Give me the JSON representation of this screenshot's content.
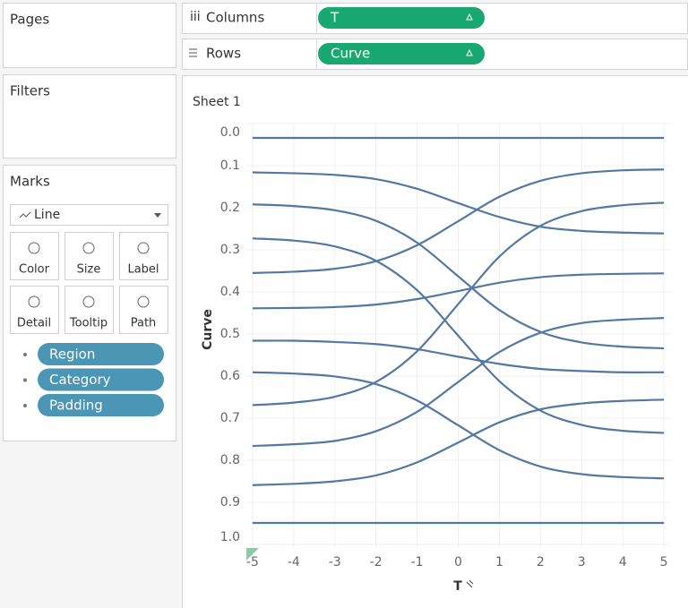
{
  "shelves": {
    "pages": "Pages",
    "filters": "Filters",
    "marks": {
      "title": "Marks",
      "mark_type": "Line",
      "buttons": [
        "Color",
        "Size",
        "Label",
        "Detail",
        "Tooltip",
        "Path"
      ],
      "pills": [
        "Region",
        "Category",
        "Padding"
      ]
    },
    "columns": {
      "label": "Columns",
      "pill": "T"
    },
    "rows": {
      "label": "Rows",
      "pill": "Curve"
    }
  },
  "chart_data": {
    "type": "line",
    "title": "Sheet 1",
    "x_label": "T",
    "y_label": "Curve",
    "x": [
      -5,
      -4,
      -3,
      -2,
      -1,
      0,
      1,
      2,
      3,
      4,
      5
    ],
    "color": "#5578a2",
    "grid": true,
    "y_reversed": true,
    "xlim": [
      -5.15,
      5.15
    ],
    "xticks": [
      -5,
      -4,
      -3,
      -2,
      -1,
      0,
      1,
      2,
      3,
      4,
      5
    ],
    "ylim": [
      0,
      1
    ],
    "yticks": [
      {
        "value": 0,
        "label": "0.0"
      },
      0.1,
      0.2,
      0.3,
      0.4,
      0.5,
      0.6,
      0.7,
      0.8,
      0.9,
      {
        "value": 1,
        "label": "1.0"
      }
    ],
    "series": [
      {
        "values": [
          0.034,
          0.034,
          0.034,
          0.034,
          0.034,
          0.034,
          0.034,
          0.034,
          0.034,
          0.034,
          0.034
        ]
      },
      {
        "values": [
          0.116,
          0.118,
          0.122,
          0.132,
          0.155,
          0.189,
          0.222,
          0.245,
          0.255,
          0.259,
          0.261
        ]
      },
      {
        "values": [
          0.192,
          0.196,
          0.206,
          0.231,
          0.283,
          0.363,
          0.443,
          0.495,
          0.52,
          0.53,
          0.534
        ]
      },
      {
        "values": [
          0.273,
          0.278,
          0.292,
          0.326,
          0.396,
          0.504,
          0.612,
          0.682,
          0.716,
          0.73,
          0.735
        ]
      },
      {
        "values": [
          0.355,
          0.352,
          0.345,
          0.327,
          0.289,
          0.232,
          0.174,
          0.136,
          0.118,
          0.111,
          0.109
        ]
      },
      {
        "values": [
          0.439,
          0.438,
          0.436,
          0.43,
          0.417,
          0.398,
          0.378,
          0.365,
          0.359,
          0.357,
          0.356
        ]
      },
      {
        "values": [
          0.516,
          0.516,
          0.519,
          0.524,
          0.536,
          0.554,
          0.571,
          0.583,
          0.588,
          0.591,
          0.591
        ]
      },
      {
        "values": [
          0.591,
          0.594,
          0.601,
          0.619,
          0.658,
          0.717,
          0.776,
          0.815,
          0.833,
          0.84,
          0.843
        ]
      },
      {
        "values": [
          0.669,
          0.663,
          0.649,
          0.614,
          0.541,
          0.429,
          0.316,
          0.243,
          0.208,
          0.194,
          0.188
        ]
      },
      {
        "values": [
          0.766,
          0.762,
          0.754,
          0.731,
          0.685,
          0.614,
          0.543,
          0.497,
          0.474,
          0.466,
          0.462
        ]
      },
      {
        "values": [
          0.859,
          0.856,
          0.85,
          0.836,
          0.805,
          0.758,
          0.71,
          0.679,
          0.665,
          0.659,
          0.656
        ]
      },
      {
        "values": [
          0.949,
          0.949,
          0.949,
          0.949,
          0.949,
          0.949,
          0.949,
          0.949,
          0.949,
          0.949,
          0.949
        ]
      }
    ]
  }
}
